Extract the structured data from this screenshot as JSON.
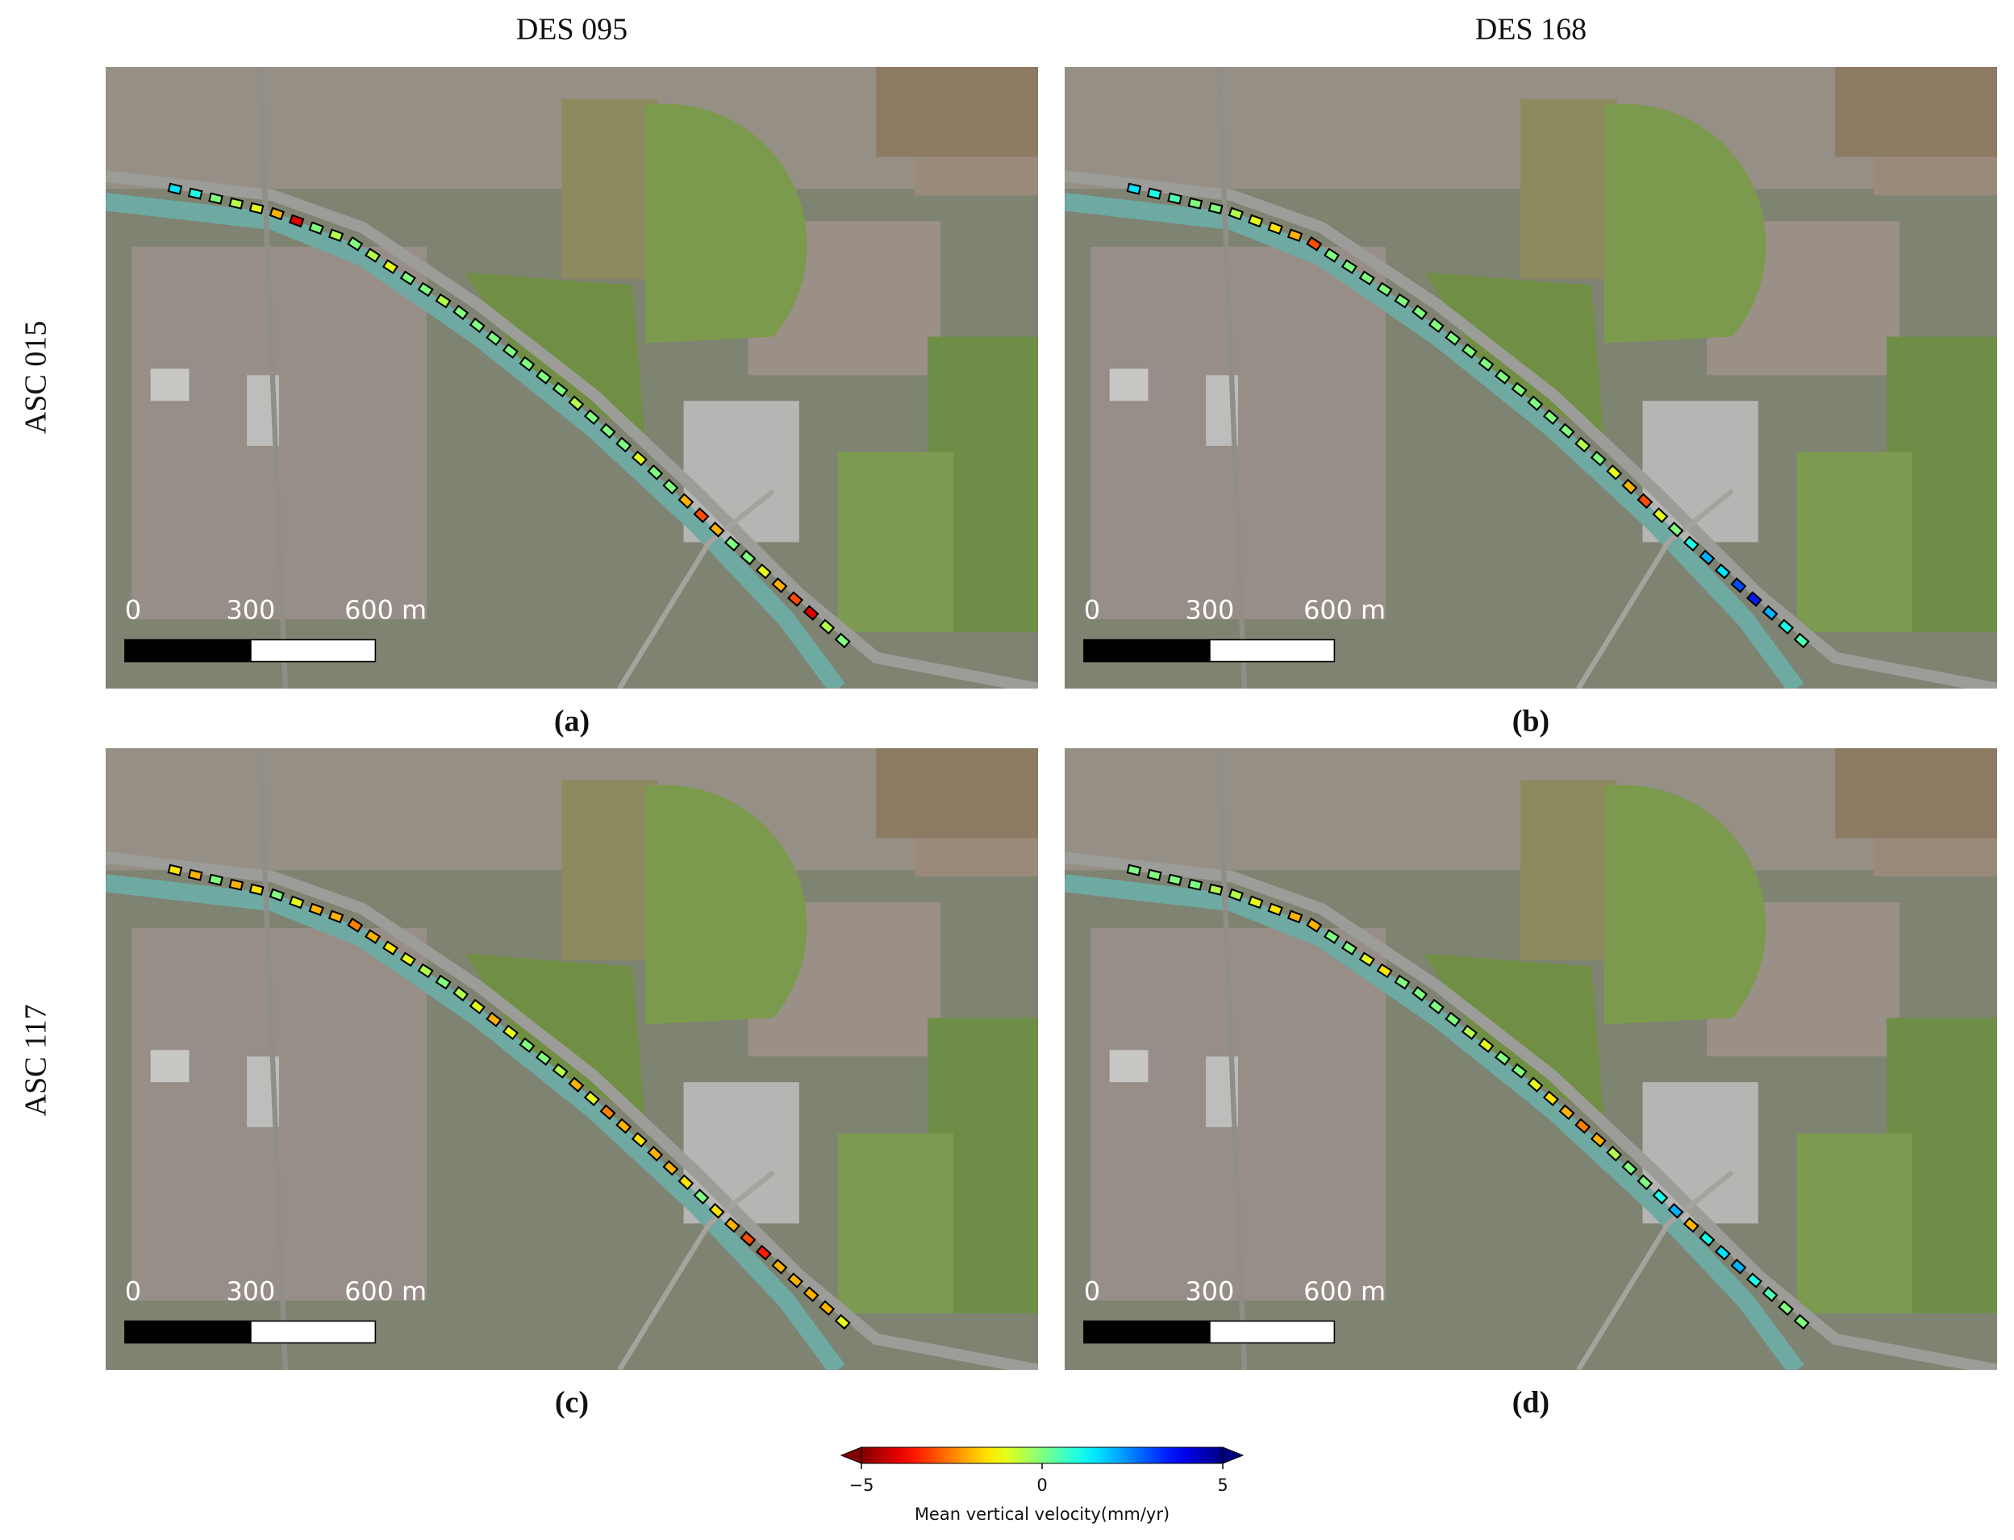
{
  "column_titles": [
    "DES 095",
    "DES 168"
  ],
  "row_titles": [
    "ASC 015",
    "ASC 117"
  ],
  "scale_bar": {
    "labels": [
      "0",
      "300",
      "600 m"
    ]
  },
  "panels": [
    {
      "label": "(a)",
      "velocities": [
        1.5,
        1,
        0,
        -0.5,
        -1,
        -2,
        -4,
        0,
        -0.5,
        0,
        -0.5,
        -1,
        0,
        0,
        -0.5,
        0,
        0,
        0,
        0,
        0,
        0,
        0,
        -0.5,
        0,
        0,
        0,
        -1,
        0,
        0,
        -2,
        -3,
        -2,
        0,
        0,
        -1,
        -2,
        -3,
        -4,
        -0.5,
        0
      ]
    },
    {
      "label": "(b)",
      "velocities": [
        1.5,
        1,
        0.5,
        0,
        0,
        -0.5,
        -1,
        -1.5,
        -2,
        -3,
        0,
        0,
        0,
        0,
        0,
        0,
        0,
        0,
        0,
        0,
        0,
        0,
        0,
        0,
        0,
        -0.5,
        0,
        -1,
        -2,
        -3,
        -1,
        0,
        1,
        2,
        1.5,
        3,
        3.5,
        2,
        1,
        0.5
      ]
    },
    {
      "label": "(c)",
      "velocities": [
        -1.5,
        -2,
        0,
        -2,
        -1.5,
        0,
        -1,
        -2,
        -2,
        -2.5,
        -2,
        -1.5,
        -1,
        -0.5,
        0,
        -0.5,
        -1,
        -2,
        -1,
        0,
        0,
        -0.5,
        -2,
        -1,
        -2.5,
        -2,
        -1.5,
        -2,
        -2,
        -1.5,
        0,
        -1.5,
        -2,
        -3,
        -3.5,
        -2,
        -2,
        -2,
        -2,
        -1
      ]
    },
    {
      "label": "(d)",
      "velocities": [
        0,
        0,
        0,
        0,
        -0.5,
        -0.5,
        -1,
        -1.5,
        -2,
        -2,
        0,
        0,
        -1,
        -1.5,
        0,
        0,
        0,
        0,
        -0.5,
        -1,
        0,
        0,
        -1,
        -1.5,
        -2,
        -2.5,
        -2,
        -0.5,
        0,
        0,
        1,
        2,
        -2,
        1,
        1.5,
        2,
        1,
        0.5,
        0,
        0
      ]
    }
  ],
  "colorbar": {
    "label": "Mean vertical velocity(mm/yr)",
    "vlim": [
      -5,
      5
    ],
    "ticks": [
      {
        "value": -5,
        "label": "−5"
      },
      0,
      5
    ]
  }
}
